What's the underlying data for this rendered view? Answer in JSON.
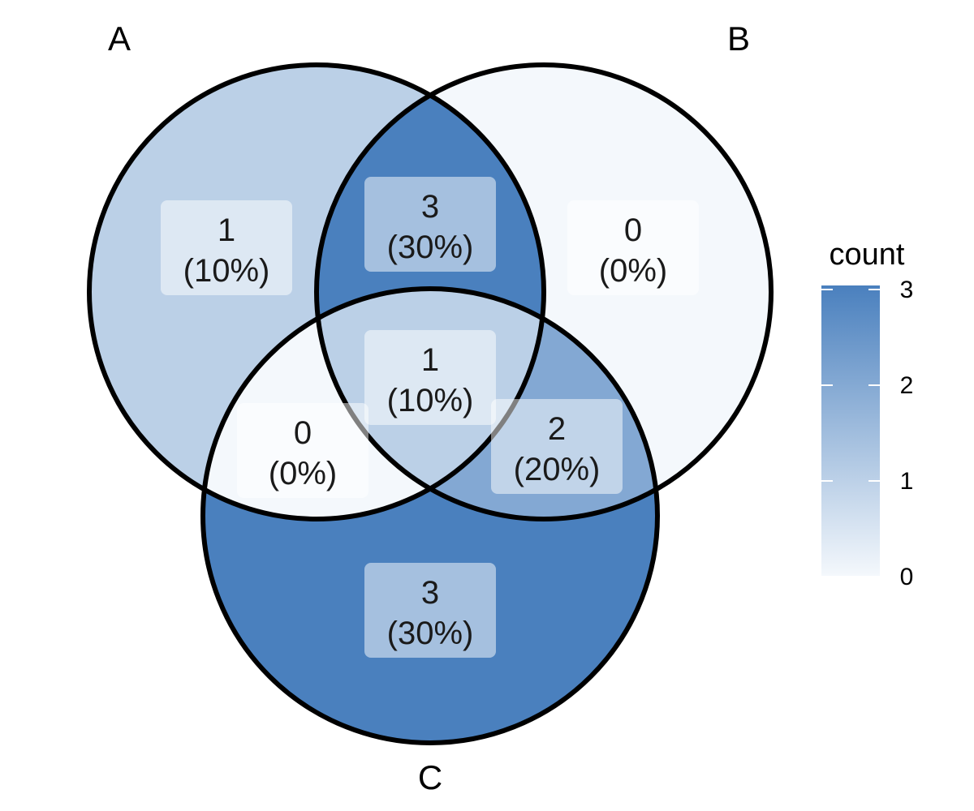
{
  "sets": [
    {
      "id": "A",
      "label": "A"
    },
    {
      "id": "B",
      "label": "B"
    },
    {
      "id": "C",
      "label": "C"
    }
  ],
  "regions": [
    {
      "id": "A_only",
      "sets": [
        "A"
      ],
      "count": "1",
      "percent": "(10%)",
      "value": 1
    },
    {
      "id": "AB",
      "sets": [
        "A",
        "B"
      ],
      "count": "3",
      "percent": "(30%)",
      "value": 3
    },
    {
      "id": "B_only",
      "sets": [
        "B"
      ],
      "count": "0",
      "percent": "(0%)",
      "value": 0
    },
    {
      "id": "ABC",
      "sets": [
        "A",
        "B",
        "C"
      ],
      "count": "1",
      "percent": "(10%)",
      "value": 1
    },
    {
      "id": "AC",
      "sets": [
        "A",
        "C"
      ],
      "count": "0",
      "percent": "(0%)",
      "value": 0
    },
    {
      "id": "BC",
      "sets": [
        "B",
        "C"
      ],
      "count": "2",
      "percent": "(20%)",
      "value": 2
    },
    {
      "id": "C_only",
      "sets": [
        "C"
      ],
      "count": "3",
      "percent": "(30%)",
      "value": 3
    }
  ],
  "legend": {
    "title": "count",
    "ticks": [
      "0",
      "1",
      "2",
      "3"
    ],
    "min": 0,
    "max": 3,
    "color_low": "#F4F8FC",
    "color_high": "#4A80BE"
  },
  "colors": {
    "stroke": "#000000",
    "label_box": "#FFFFFF"
  }
}
